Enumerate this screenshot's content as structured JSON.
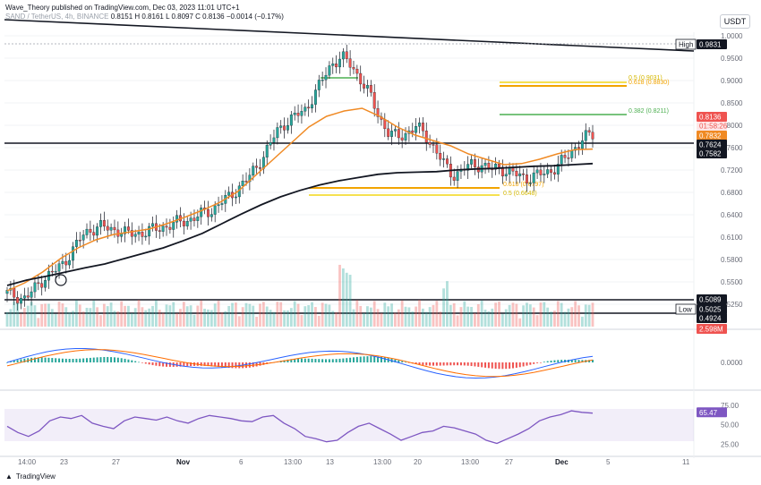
{
  "header": {
    "published": "Wave_Theory published on TradingView.com, Dec 03, 2023 11:01 UTC+1",
    "symbol": "SAND / TetherUS, 4h, BINANCE",
    "ohlc": "0.8151  H 0.8161  L 0.8097  C 0.8136  −0.0014 (−0.17%)",
    "currency": "USDT"
  },
  "footer": {
    "brand": "TradingView"
  },
  "colors": {
    "up": "#26a69a",
    "down": "#ef5350",
    "ema_fast": "#f08a24",
    "ema_slow": "#131722",
    "fib_orange": "#f2a400",
    "fib_yellow": "#f5e050",
    "fib_green": "#4caf50",
    "macd": "#2962ff",
    "signal": "#ff6d00",
    "rsi": "#7e57c2"
  },
  "chart_data": [
    {
      "type": "candlestick",
      "panel": "price",
      "ylim": [
        0.5,
        1.0
      ],
      "y_ticks": [
        "1.0000",
        "0.9500",
        "0.9000",
        "0.8500",
        "0.8000",
        "0.7600",
        "0.7200",
        "0.6800",
        "0.6400",
        "0.6100",
        "0.5800",
        "0.5500",
        "0.5250"
      ],
      "x_ticks": [
        "14:00",
        "23",
        "27",
        "Nov",
        "6",
        "13:00",
        "13",
        "13:00",
        "20",
        "13:00",
        "27",
        "Dec",
        "5",
        "11"
      ],
      "close_path": [
        0.52,
        0.515,
        0.51,
        0.53,
        0.55,
        0.56,
        0.575,
        0.6,
        0.625,
        0.64,
        0.645,
        0.64,
        0.638,
        0.63,
        0.632,
        0.635,
        0.64,
        0.645,
        0.65,
        0.655,
        0.66,
        0.668,
        0.675,
        0.69,
        0.7,
        0.72,
        0.735,
        0.76,
        0.79,
        0.82,
        0.84,
        0.85,
        0.86,
        0.89,
        0.92,
        0.95,
        0.96,
        0.945,
        0.92,
        0.89,
        0.85,
        0.82,
        0.81,
        0.82,
        0.83,
        0.815,
        0.79,
        0.76,
        0.74,
        0.75,
        0.76,
        0.76,
        0.75,
        0.755,
        0.745,
        0.74,
        0.735,
        0.74,
        0.745,
        0.755,
        0.77,
        0.79,
        0.81,
        0.814
      ],
      "ema_fast": [
        0.525,
        0.54,
        0.56,
        0.585,
        0.605,
        0.62,
        0.63,
        0.635,
        0.64,
        0.65,
        0.662,
        0.675,
        0.69,
        0.71,
        0.74,
        0.77,
        0.8,
        0.83,
        0.85,
        0.86,
        0.865,
        0.85,
        0.83,
        0.815,
        0.805,
        0.795,
        0.78,
        0.77,
        0.76,
        0.762,
        0.77,
        0.78,
        0.788,
        0.789
      ],
      "ema_slow": [
        0.535,
        0.545,
        0.552,
        0.56,
        0.568,
        0.575,
        0.585,
        0.595,
        0.605,
        0.618,
        0.632,
        0.65,
        0.668,
        0.685,
        0.7,
        0.712,
        0.722,
        0.73,
        0.736,
        0.742,
        0.745,
        0.746,
        0.747,
        0.75,
        0.752,
        0.753,
        0.755,
        0.757,
        0.758,
        0.76,
        0.762
      ],
      "levels": [
        {
          "label": "High",
          "value": "0.9831",
          "style": "dark"
        },
        {
          "value": "0.8136",
          "sub": "01:58:26",
          "style": "red"
        },
        {
          "value": "0.7832",
          "style": "orange"
        },
        {
          "value": "0.7624",
          "style": "dark"
        },
        {
          "value": "0.7582",
          "style": "dark"
        },
        {
          "value": "0.5089",
          "style": "dark"
        },
        {
          "label": "Low",
          "value": "0.5025",
          "style": "dark"
        },
        {
          "value": "0.4924",
          "style": "dark"
        },
        {
          "value": "2.598M",
          "style": "red"
        }
      ],
      "fib_labels": [
        {
          "text": "0.5 (0.9031)",
          "color": "yellow"
        },
        {
          "text": "0.618 (0.8830)",
          "color": "orange"
        },
        {
          "text": "0.382 (0.8211)",
          "color": "green"
        },
        {
          "text": "0.618 (0.6797)",
          "color": "orange"
        },
        {
          "text": "0.5 (0.6648)",
          "color": "yellow"
        }
      ]
    },
    {
      "type": "histogram",
      "panel": "macd",
      "y_ticks": [
        "0.0000"
      ]
    },
    {
      "type": "line",
      "panel": "rsi",
      "y_ticks": [
        "75.00",
        "50.00",
        "25.00"
      ],
      "last_value": "65.47",
      "values": [
        48,
        40,
        35,
        42,
        55,
        60,
        58,
        62,
        52,
        48,
        45,
        55,
        60,
        58,
        56,
        60,
        55,
        52,
        58,
        62,
        60,
        58,
        55,
        54,
        60,
        62,
        52,
        45,
        35,
        32,
        28,
        30,
        40,
        48,
        52,
        45,
        38,
        30,
        35,
        40,
        42,
        48,
        46,
        42,
        38,
        30,
        26,
        32,
        38,
        45,
        55,
        60,
        63,
        68,
        66,
        65
      ]
    }
  ]
}
